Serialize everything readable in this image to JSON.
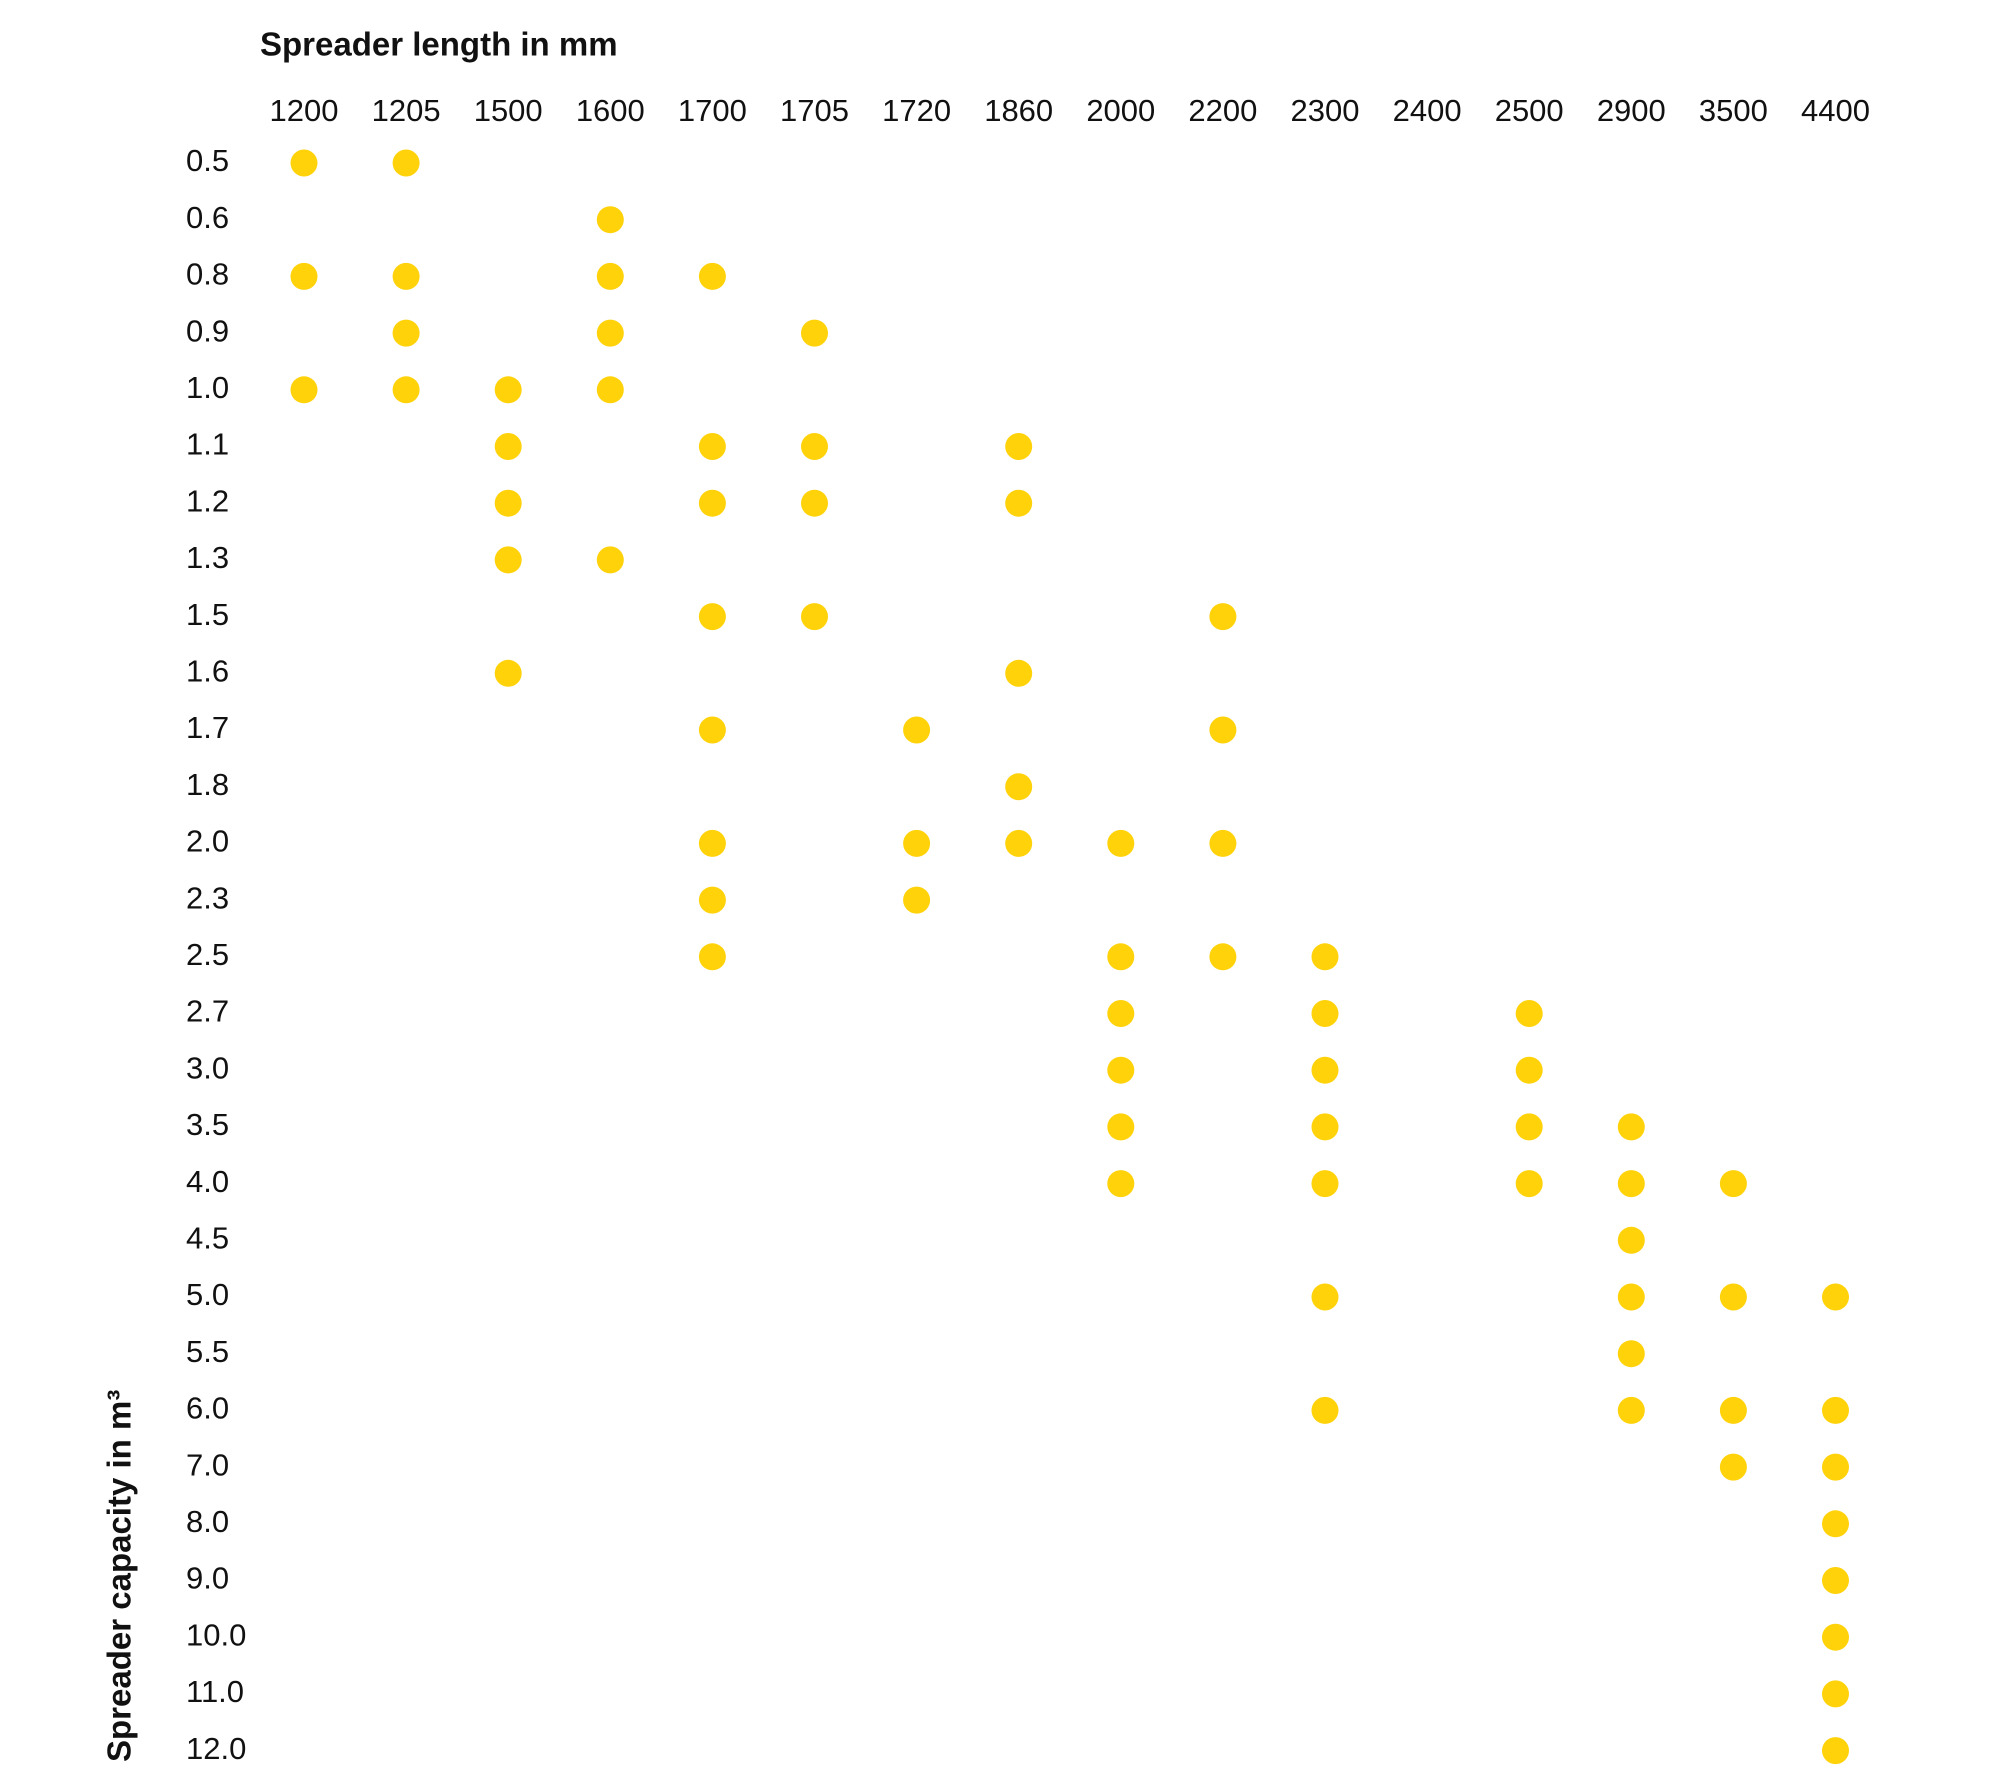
{
  "chart_data": {
    "type": "dot-matrix",
    "x_title": "Spreader length in mm",
    "y_title": "Spreader capacity in m³",
    "color": "#ffd20a",
    "x_categories": [
      "1200",
      "1205",
      "1500",
      "1600",
      "1700",
      "1705",
      "1720",
      "1860",
      "2000",
      "2200",
      "2300",
      "2400",
      "2500",
      "2900",
      "3500",
      "4400"
    ],
    "y_categories": [
      "0.5",
      "0.6",
      "0.8",
      "0.9",
      "1.0",
      "1.1",
      "1.2",
      "1.3",
      "1.5",
      "1.6",
      "1.7",
      "1.8",
      "2.0",
      "2.3",
      "2.5",
      "2.7",
      "3.0",
      "3.5",
      "4.0",
      "4.5",
      "5.0",
      "5.5",
      "6.0",
      "7.0",
      "8.0",
      "9.0",
      "10.0",
      "11.0",
      "12.0"
    ],
    "dots": [
      [
        "1200",
        "1205"
      ],
      [
        "1600"
      ],
      [
        "1200",
        "1205",
        "1600",
        "1700"
      ],
      [
        "1205",
        "1600",
        "1705"
      ],
      [
        "1200",
        "1205",
        "1500",
        "1600"
      ],
      [
        "1500",
        "1700",
        "1705",
        "1860"
      ],
      [
        "1500",
        "1700",
        "1705",
        "1860"
      ],
      [
        "1500",
        "1600"
      ],
      [
        "1700",
        "1705",
        "2200"
      ],
      [
        "1500",
        "1860"
      ],
      [
        "1700",
        "1720",
        "2200"
      ],
      [
        "1860"
      ],
      [
        "1700",
        "1720",
        "1860",
        "2000",
        "2200"
      ],
      [
        "1700",
        "1720"
      ],
      [
        "1700",
        "2000",
        "2200",
        "2300"
      ],
      [
        "2000",
        "2300",
        "2500"
      ],
      [
        "2000",
        "2300",
        "2500"
      ],
      [
        "2000",
        "2300",
        "2500",
        "2900"
      ],
      [
        "2000",
        "2300",
        "2500",
        "2900",
        "3500"
      ],
      [
        "2900"
      ],
      [
        "2300",
        "2900",
        "3500",
        "4400"
      ],
      [
        "2900"
      ],
      [
        "2300",
        "2900",
        "3500",
        "4400"
      ],
      [
        "3500",
        "4400"
      ],
      [
        "4400"
      ],
      [
        "4400"
      ],
      [
        "4400"
      ],
      [
        "4400"
      ],
      [
        "4400"
      ]
    ]
  }
}
